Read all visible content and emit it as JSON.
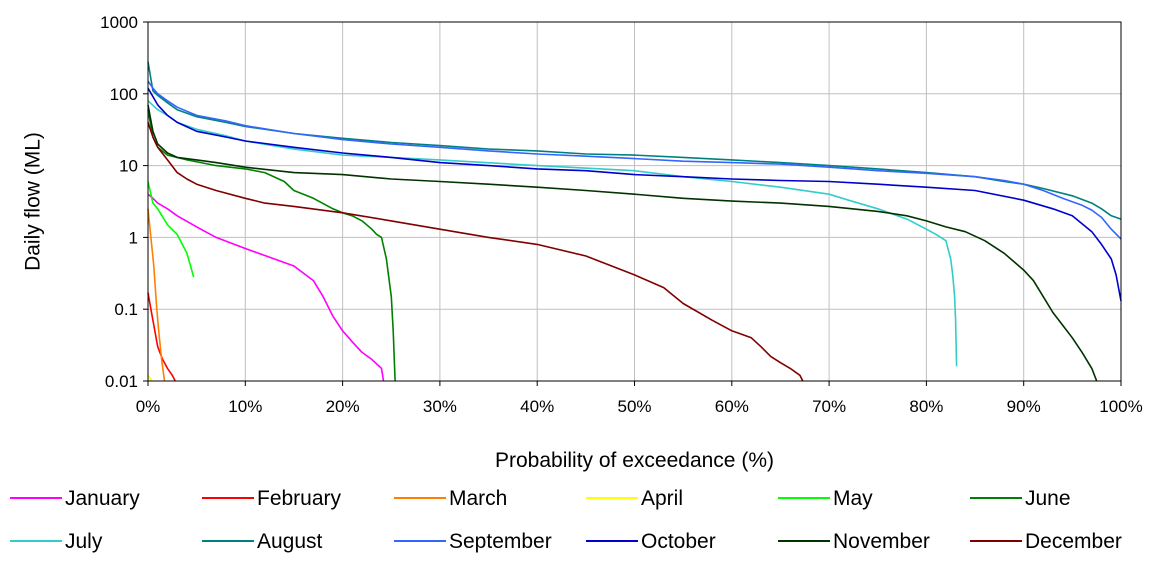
{
  "chart_data": {
    "type": "line",
    "title": "",
    "xlabel": "Probability of exceedance (%)",
    "ylabel": "Daily flow (ML)",
    "x_scale": "linear",
    "y_scale": "log",
    "xlim": [
      0,
      100
    ],
    "ylim": [
      0.01,
      1000
    ],
    "x_ticks": [
      0,
      10,
      20,
      30,
      40,
      50,
      60,
      70,
      80,
      90,
      100
    ],
    "x_tick_labels": [
      "0%",
      "10%",
      "20%",
      "30%",
      "40%",
      "50%",
      "60%",
      "70%",
      "80%",
      "90%",
      "100%"
    ],
    "y_ticks": [
      0.01,
      0.1,
      1,
      10,
      100,
      1000
    ],
    "y_tick_labels": [
      "0.01",
      "0.1",
      "1",
      "10",
      "100",
      "1000"
    ],
    "grid": true,
    "legend_position": "bottom",
    "series": [
      {
        "name": "January",
        "color": "#ff00ff",
        "x": [
          0,
          0.5,
          1,
          2,
          3,
          5,
          7,
          10,
          13,
          15,
          17,
          18,
          19,
          20,
          21,
          22,
          23,
          24,
          24.2
        ],
        "y": [
          4,
          3.5,
          3,
          2.5,
          2,
          1.4,
          1,
          0.7,
          0.5,
          0.4,
          0.25,
          0.15,
          0.08,
          0.05,
          0.035,
          0.025,
          0.02,
          0.015,
          0.01
        ]
      },
      {
        "name": "February",
        "color": "#ff0000",
        "x": [
          0,
          0.3,
          0.6,
          1,
          1.5,
          2,
          2.5,
          2.8
        ],
        "y": [
          0.17,
          0.1,
          0.06,
          0.03,
          0.02,
          0.015,
          0.012,
          0.01
        ]
      },
      {
        "name": "March",
        "color": "#ff8000",
        "x": [
          0,
          0.3,
          0.6,
          0.9,
          1.1,
          1.4,
          1.7
        ],
        "y": [
          2.5,
          1,
          0.4,
          0.1,
          0.05,
          0.02,
          0.01
        ]
      },
      {
        "name": "April",
        "color": "#ffff00",
        "x": [
          0,
          0.4
        ],
        "y": [
          0.012,
          0.01
        ]
      },
      {
        "name": "May",
        "color": "#00ff00",
        "x": [
          0,
          0.5,
          1,
          2,
          3,
          4,
          4.7
        ],
        "y": [
          6,
          3,
          2.5,
          1.5,
          1.1,
          0.6,
          0.28
        ]
      },
      {
        "name": "June",
        "color": "#008000",
        "x": [
          0,
          0.5,
          1,
          2,
          4,
          7,
          10,
          12,
          14,
          15,
          17,
          19,
          20,
          21,
          22,
          23,
          23.5,
          24,
          24.5,
          25,
          25.2,
          25.4
        ],
        "y": [
          60,
          25,
          18,
          14,
          12,
          10,
          9,
          8,
          6,
          4.5,
          3.5,
          2.5,
          2.2,
          2,
          1.7,
          1.3,
          1.1,
          1,
          0.5,
          0.15,
          0.05,
          0.01
        ]
      },
      {
        "name": "July",
        "color": "#33cccc",
        "x": [
          0,
          1,
          2,
          3,
          5,
          8,
          10,
          15,
          20,
          25,
          30,
          40,
          50,
          55,
          60,
          65,
          70,
          72,
          75,
          78,
          80,
          81,
          82,
          82.5,
          82.7,
          82.9,
          83,
          83.1
        ],
        "y": [
          80,
          60,
          50,
          40,
          32,
          26,
          22,
          17,
          14,
          13,
          12,
          10,
          8.5,
          7,
          6,
          5,
          4,
          3.3,
          2.5,
          1.8,
          1.3,
          1.1,
          0.9,
          0.5,
          0.3,
          0.15,
          0.07,
          0.016
        ]
      },
      {
        "name": "August",
        "color": "#008080",
        "x": [
          0,
          0.5,
          1,
          2,
          3,
          5,
          8,
          10,
          15,
          20,
          25,
          30,
          35,
          40,
          45,
          50,
          55,
          60,
          65,
          70,
          75,
          80,
          85,
          88,
          90,
          92,
          95,
          97,
          98,
          99,
          100
        ],
        "y": [
          280,
          110,
          95,
          75,
          60,
          48,
          40,
          35,
          28,
          24,
          21,
          19,
          17,
          16,
          14.5,
          14,
          13,
          12,
          11,
          10,
          9,
          8,
          7,
          6,
          5.5,
          4.8,
          3.8,
          3,
          2.5,
          2,
          1.8
        ]
      },
      {
        "name": "September",
        "color": "#3366ff",
        "x": [
          0,
          0.5,
          1,
          2,
          3,
          5,
          8,
          10,
          15,
          20,
          25,
          30,
          35,
          40,
          45,
          50,
          55,
          60,
          65,
          70,
          75,
          80,
          85,
          88,
          90,
          92,
          94,
          96,
          97,
          98,
          99,
          100
        ],
        "y": [
          150,
          120,
          100,
          80,
          65,
          50,
          42,
          36,
          28,
          23,
          20,
          18,
          16,
          14.5,
          13.5,
          12.5,
          11.5,
          11,
          10.5,
          9.5,
          8.5,
          7.8,
          7,
          6.2,
          5.5,
          4.5,
          3.5,
          2.8,
          2.4,
          1.9,
          1.3,
          0.95
        ]
      },
      {
        "name": "October",
        "color": "#0000cc",
        "x": [
          0,
          1,
          2,
          3,
          5,
          8,
          10,
          15,
          20,
          25,
          30,
          35,
          40,
          45,
          50,
          55,
          60,
          65,
          70,
          75,
          80,
          85,
          90,
          93,
          95,
          97,
          98,
          99,
          99.5,
          100
        ],
        "y": [
          120,
          70,
          50,
          40,
          30,
          25,
          22,
          18,
          15,
          13,
          11,
          10,
          9,
          8.5,
          7.5,
          7,
          6.5,
          6.2,
          6,
          5.5,
          5,
          4.5,
          3.3,
          2.5,
          2,
          1.2,
          0.8,
          0.5,
          0.3,
          0.13
        ]
      },
      {
        "name": "November",
        "color": "#003300",
        "x": [
          0,
          0.5,
          1,
          2,
          3,
          5,
          7,
          10,
          15,
          20,
          25,
          30,
          35,
          40,
          45,
          50,
          55,
          60,
          65,
          70,
          75,
          78,
          80,
          82,
          84,
          86,
          88,
          90,
          91,
          92,
          93,
          94,
          95,
          96,
          97,
          97.5
        ],
        "y": [
          70,
          30,
          20,
          15,
          13,
          12,
          11,
          9.5,
          8,
          7.5,
          6.5,
          6,
          5.5,
          5,
          4.5,
          4,
          3.5,
          3.2,
          3,
          2.7,
          2.3,
          2,
          1.7,
          1.4,
          1.2,
          0.9,
          0.6,
          0.35,
          0.25,
          0.15,
          0.09,
          0.06,
          0.04,
          0.025,
          0.015,
          0.01
        ]
      },
      {
        "name": "December",
        "color": "#800000",
        "x": [
          0,
          0.5,
          1,
          2,
          3,
          4,
          5,
          7,
          10,
          12,
          15,
          20,
          25,
          30,
          35,
          40,
          45,
          50,
          53,
          55,
          58,
          60,
          62,
          63,
          64,
          65,
          66,
          67,
          67.3
        ],
        "y": [
          40,
          25,
          18,
          12,
          8,
          6.5,
          5.5,
          4.5,
          3.5,
          3,
          2.7,
          2.2,
          1.7,
          1.3,
          1,
          0.8,
          0.55,
          0.3,
          0.2,
          0.12,
          0.07,
          0.05,
          0.04,
          0.03,
          0.022,
          0.018,
          0.015,
          0.012,
          0.01
        ]
      }
    ]
  }
}
